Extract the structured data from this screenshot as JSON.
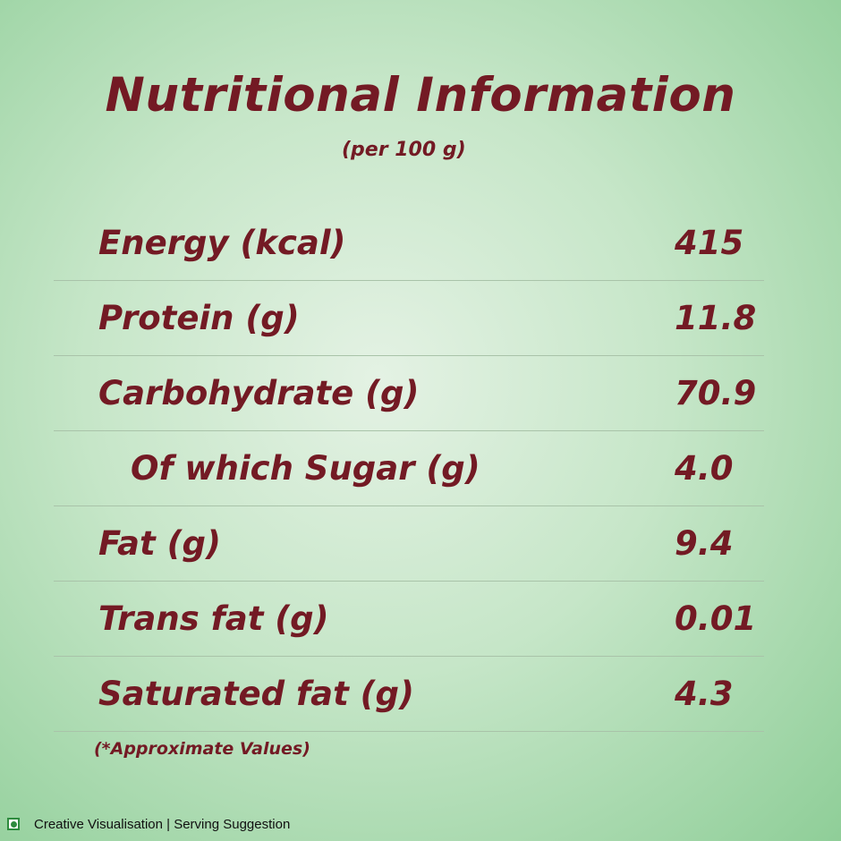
{
  "title": "Nutritional Information",
  "subtitle": "(per 100 g)",
  "rows": [
    {
      "label": "Energy (kcal)",
      "value": "415"
    },
    {
      "label": "Protein (g)",
      "value": "11.8"
    },
    {
      "label": "Carbohydrate (g)",
      "value": "70.9"
    },
    {
      "label": "Of which Sugar (g)",
      "value": "4.0"
    },
    {
      "label": "Fat (g)",
      "value": "9.4"
    },
    {
      "label": "Trans fat (g)",
      "value": "0.01"
    },
    {
      "label": "Saturated fat (g)",
      "value": "4.3"
    }
  ],
  "note": "(*Approximate Values)",
  "footer": {
    "icon": "veg-mark-icon",
    "text": "Creative Visualisation | Serving Suggestion"
  },
  "colors": {
    "text": "#731a24",
    "veg_mark": "#2e8b3e"
  }
}
